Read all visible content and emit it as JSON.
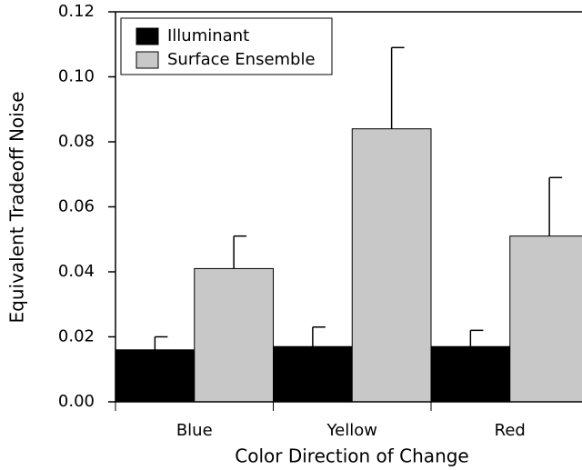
{
  "chart_data": {
    "type": "bar",
    "x_label": "Color Direction of Change",
    "y_label": "Equivalent Tradeoff Noise",
    "categories": [
      "Blue",
      "Yellow",
      "Red"
    ],
    "series": [
      {
        "name": "Illuminant",
        "color": "#000000",
        "values": [
          0.016,
          0.017,
          0.017
        ],
        "errors": [
          0.004,
          0.006,
          0.005
        ]
      },
      {
        "name": "Surface Ensemble",
        "color": "#c8c8c8",
        "values": [
          0.041,
          0.084,
          0.051
        ],
        "errors": [
          0.01,
          0.025,
          0.018
        ]
      }
    ],
    "ylim": [
      0,
      0.12
    ],
    "yticks": [
      {
        "value": 0,
        "label": "0.00"
      },
      0.02,
      0.04,
      0.06,
      0.08,
      {
        "value": 0.1,
        "label": "0.10"
      },
      0.12
    ],
    "legend": "upper left"
  }
}
